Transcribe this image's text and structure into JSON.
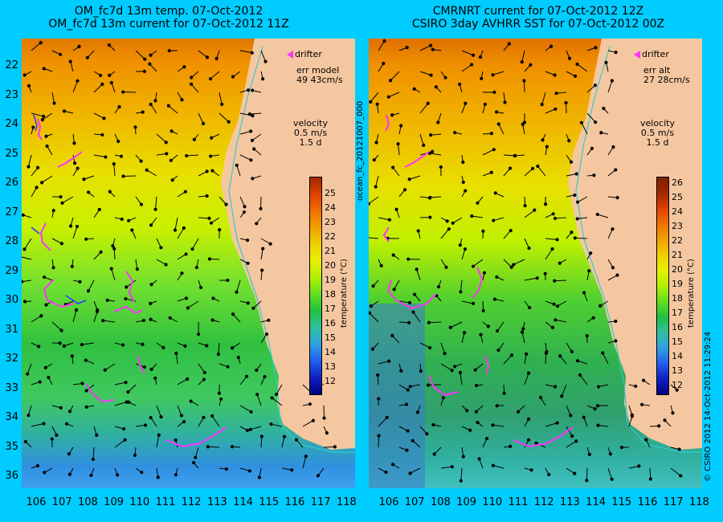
{
  "left": {
    "title1": "OM_fc7d 13m temp. 07-Oct-2012",
    "title2": "OM_fc7d 13m current for 07-Oct-2012 11Z",
    "drifter": "drifter",
    "err_label": "err model",
    "err_value": "49 43cm/s",
    "velocity_label": "velocity",
    "velocity_scale": "0.5 m/s",
    "velocity_days": "1.5 d",
    "colorbar_ticks": [
      "25",
      "24",
      "23",
      "22",
      "21",
      "20",
      "19",
      "18",
      "17",
      "16",
      "15",
      "14",
      "13",
      "12"
    ],
    "colorbar_title": "temperature (°C)"
  },
  "right": {
    "title1": "CMRNRT current for 07-Oct-2012 12Z",
    "title2": "CSIRO 3day AVHRR SST for 07-Oct-2012 00Z",
    "drifter": "drifter",
    "err_label": "err alt",
    "err_value": "27 28cm/s",
    "velocity_label": "velocity",
    "velocity_scale": "0.5 m/s",
    "velocity_days": "1.5 d",
    "colorbar_ticks": [
      "26",
      "25",
      "24",
      "23",
      "22",
      "21",
      "20",
      "19",
      "18",
      "17",
      "16",
      "15",
      "14",
      "13",
      "12"
    ],
    "colorbar_title": "temperature (°C)"
  },
  "lat_labels": [
    "22",
    "23",
    "24",
    "25",
    "26",
    "27",
    "28",
    "29",
    "30",
    "31",
    "32",
    "33",
    "34",
    "35",
    "36"
  ],
  "lon_labels": [
    "106",
    "107",
    "108",
    "109",
    "110",
    "111",
    "112",
    "113",
    "114",
    "115",
    "116",
    "117",
    "118"
  ],
  "side_text": "ocean_fc_20121007_000",
  "credit_text": "© CSIRO 2012  14-Oct-2012 11:29:24",
  "colors": {
    "background": "#00ccff",
    "land": "#f5c7a0",
    "drifter": "#ff33ff",
    "coast_line": "#33cccc"
  }
}
